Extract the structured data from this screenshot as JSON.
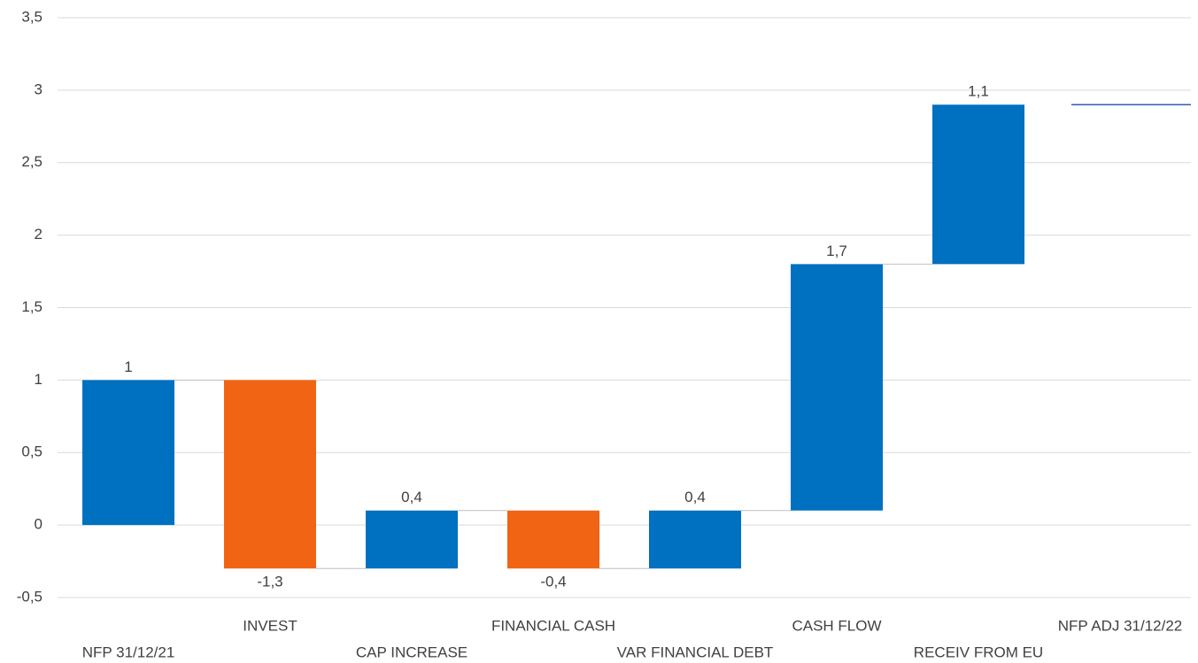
{
  "chart_data": {
    "type": "waterfall",
    "categories": [
      "NFP 31/12/21",
      "INVEST",
      "CAP INCREASE",
      "FINANCIAL CASH",
      "VAR FINANCIAL DEBT",
      "CASH FLOW",
      "RECEIV FROM EU",
      "NFP ADJ 31/12/22"
    ],
    "values": [
      1,
      -1.3,
      0.4,
      -0.4,
      0.4,
      1.7,
      1.1,
      2.9
    ],
    "value_labels": [
      "1",
      "-1,3",
      "0,4",
      "-0,4",
      "0,4",
      "1,7",
      "1,1",
      null
    ],
    "increase_color": "#0070c0",
    "decrease_color": "#f06414",
    "total_color": "#2f5fb0",
    "ylim": [
      -0.5,
      3.5
    ],
    "yticks": [
      {
        "value": -0.5,
        "label": "-0,5"
      },
      0,
      {
        "value": 0.5,
        "label": "0,5"
      },
      1,
      {
        "value": 1.5,
        "label": "1,5"
      },
      2,
      {
        "value": 2.5,
        "label": "2,5"
      },
      3,
      {
        "value": 3.5,
        "label": "3,5"
      }
    ],
    "grid": true
  }
}
